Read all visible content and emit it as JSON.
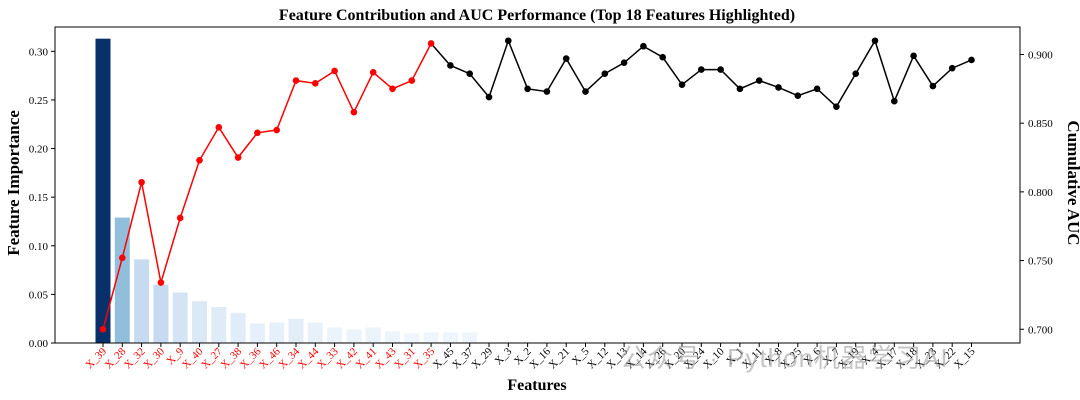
{
  "chart_data": {
    "type": "bar+line",
    "title": "Feature Contribution and AUC Performance (Top 18 Features Highlighted)",
    "xlabel": "Features",
    "ylabel_left": "Feature Importance",
    "ylabel_right": "Cumulative AUC",
    "ylim_left": [
      0,
      0.325
    ],
    "ylim_right": [
      0.69,
      0.92
    ],
    "yticks_left": [
      "0.00",
      "0.05",
      "0.10",
      "0.15",
      "0.20",
      "0.25",
      "0.30"
    ],
    "yticks_right": [
      "0.700",
      "0.750",
      "0.800",
      "0.850",
      "0.900"
    ],
    "highlight_count": 18,
    "colors": {
      "highlight_line": "#ff0000",
      "other_line": "#000000",
      "highlight_tick": "#ff0000",
      "other_tick": "#000000"
    },
    "categories": [
      "X_39",
      "X_28",
      "X_32",
      "X_30",
      "X_9",
      "X_40",
      "X_27",
      "X_38",
      "X_36",
      "X_46",
      "X_34",
      "X_44",
      "X_33",
      "X_42",
      "X_41",
      "X_43",
      "X_31",
      "X_35",
      "X_45",
      "X_37",
      "X_29",
      "X_3",
      "X_2",
      "X_16",
      "X_21",
      "X_5",
      "X_12",
      "X_13",
      "X_14",
      "X_26",
      "X_20",
      "X_24",
      "X_10",
      "X_1",
      "X_11",
      "X_8",
      "X_25",
      "X_6",
      "X_7",
      "X_19",
      "X_4",
      "X_17",
      "X_18",
      "X_23",
      "X_22",
      "X_15"
    ],
    "importance": [
      0.313,
      0.129,
      0.086,
      0.06,
      0.052,
      0.043,
      0.037,
      0.031,
      0.02,
      0.021,
      0.025,
      0.021,
      0.016,
      0.014,
      0.016,
      0.012,
      0.01,
      0.011,
      0.011,
      0.011,
      0,
      0,
      0,
      0,
      0,
      0,
      0,
      0,
      0,
      0,
      0,
      0,
      0,
      0,
      0,
      0,
      0,
      0,
      0,
      0,
      0,
      0,
      0,
      0,
      0,
      0
    ],
    "bar_colors": [
      "#08306b",
      "#91bfdb",
      "#c6dbef",
      "#c6dbef",
      "#d4e4f4",
      "#dbe9f6",
      "#dfebf7",
      "#e0ecf8",
      "#e6f0fa",
      "#e6f0fa",
      "#e4eef9",
      "#e8f1fa",
      "#ebf3fb",
      "#ecf4fb",
      "#ebf3fb",
      "#edf4fc",
      "#eef5fc",
      "#eef5fc",
      "#eef5fc",
      "#eef5fc",
      "#f7fbff",
      "#f7fbff",
      "#f7fbff",
      "#f7fbff",
      "#f7fbff",
      "#f7fbff",
      "#f7fbff",
      "#f7fbff",
      "#f7fbff",
      "#f7fbff",
      "#f7fbff",
      "#f7fbff",
      "#f7fbff",
      "#f7fbff",
      "#f7fbff",
      "#f7fbff",
      "#f7fbff",
      "#f7fbff",
      "#f7fbff",
      "#f7fbff",
      "#f7fbff",
      "#f7fbff",
      "#f7fbff",
      "#f7fbff",
      "#f7fbff",
      "#f7fbff"
    ],
    "auc": [
      0.7,
      0.752,
      0.807,
      0.734,
      0.781,
      0.823,
      0.847,
      0.825,
      0.843,
      0.845,
      0.881,
      0.879,
      0.888,
      0.858,
      0.887,
      0.875,
      0.881,
      0.908,
      0.892,
      0.886,
      0.869,
      0.91,
      0.875,
      0.873,
      0.897,
      0.873,
      0.886,
      0.894,
      0.906,
      0.898,
      0.878,
      0.889,
      0.889,
      0.875,
      0.881,
      0.876,
      0.87,
      0.875,
      0.862,
      0.886,
      0.91,
      0.866,
      0.899,
      0.877,
      0.89,
      0.896
    ]
  },
  "watermark": "公众号 · Python机器学习AI"
}
